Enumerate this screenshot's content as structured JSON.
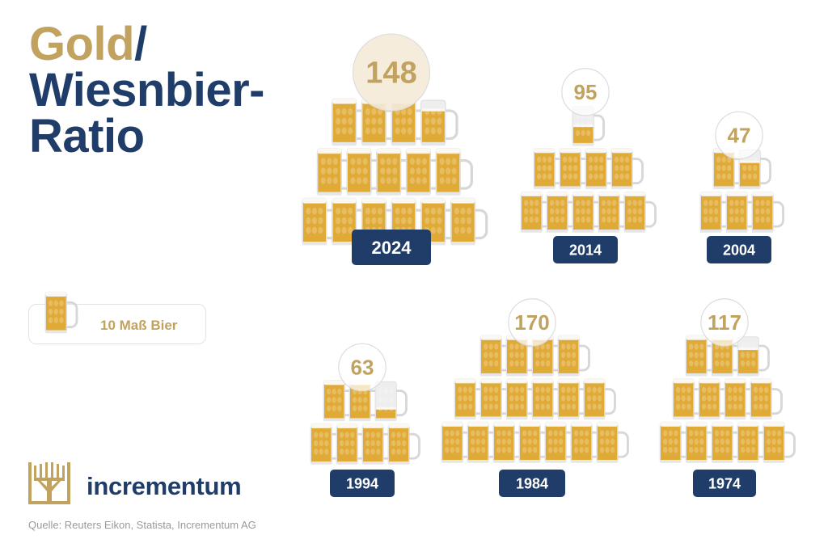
{
  "title": {
    "part1": "Gold",
    "slash": "/",
    "line2": "Wiesnbier-",
    "line3": "Ratio"
  },
  "legend": {
    "label": "10 Maß Bier"
  },
  "brand": {
    "name": "incrementum"
  },
  "source": "Quelle: Reuters Eikon, Statista, Incrementum AG",
  "colors": {
    "gold": "#c1a25f",
    "navy": "#203d6a",
    "beer": "#e0aa37",
    "foam": "#fbf8f1",
    "glass": "#eeeeee"
  },
  "chart_data": {
    "type": "pictogram",
    "unit": "10 Maß Bier",
    "title": "Gold/ Wiesnbier-Ratio",
    "categories": [
      "2024",
      "2014",
      "2004",
      "1994",
      "1984",
      "1974"
    ],
    "values": [
      148,
      95,
      47,
      63,
      170,
      117
    ]
  }
}
